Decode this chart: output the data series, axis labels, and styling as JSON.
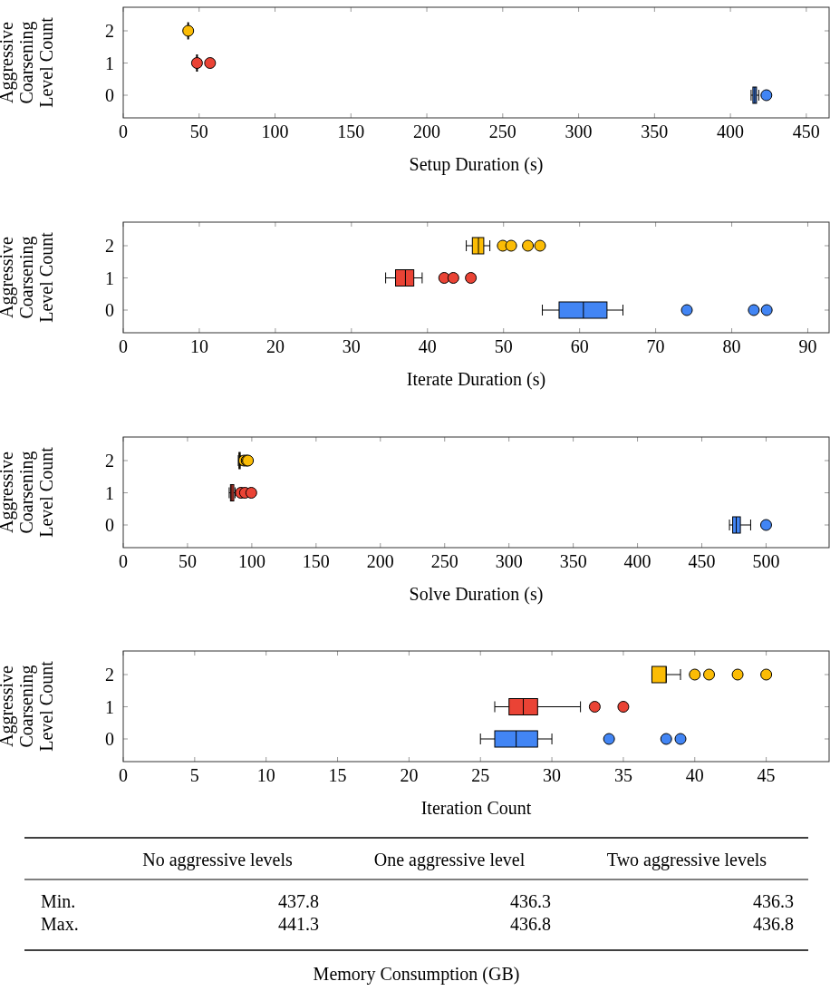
{
  "chart_data": [
    {
      "type": "box",
      "orientation": "horizontal",
      "xlabel": "Setup Duration (s)",
      "ylabel": "Aggressive Coarsening Level Count",
      "categories": [
        "2",
        "1",
        "0"
      ],
      "colors": [
        "#fbbc05",
        "#ea4335",
        "#4285f4"
      ],
      "boxes": [
        {
          "low": 42,
          "q1": 42.5,
          "median": 42.8,
          "q3": 43,
          "high": 43.5,
          "outliers": [
            42.8
          ]
        },
        {
          "low": 48,
          "q1": 48.3,
          "median": 48.6,
          "q3": 48.9,
          "high": 49.2,
          "outliers": [
            48.6,
            57.2
          ]
        },
        {
          "low": 413.6,
          "q1": 414.8,
          "median": 416,
          "q3": 417.2,
          "high": 418.7,
          "outliers": [
            423.7
          ]
        }
      ],
      "xlim": [
        0,
        465
      ],
      "xticks": [
        0,
        50,
        100,
        150,
        200,
        250,
        300,
        350,
        400,
        450
      ],
      "grid": false
    },
    {
      "type": "box",
      "orientation": "horizontal",
      "xlabel": "Iterate Duration (s)",
      "ylabel": "Aggressive Coarsening Level Count",
      "categories": [
        "2",
        "1",
        "0"
      ],
      "colors": [
        "#fbbc05",
        "#ea4335",
        "#4285f4"
      ],
      "boxes": [
        {
          "low": 45.1,
          "q1": 45.9,
          "median": 46.7,
          "q3": 47.4,
          "high": 48.2,
          "outliers": [
            49.9,
            51.0,
            53.2,
            54.8
          ]
        },
        {
          "low": 34.5,
          "q1": 35.8,
          "median": 37.1,
          "q3": 38.2,
          "high": 39.3,
          "outliers": [
            42.2,
            43.4,
            45.7
          ]
        },
        {
          "low": 55.1,
          "q1": 57.3,
          "median": 60.5,
          "q3": 63.6,
          "high": 65.7,
          "outliers": [
            74.1,
            82.9,
            84.6
          ]
        }
      ],
      "xlim": [
        0,
        92.8
      ],
      "xticks": [
        0,
        10,
        20,
        30,
        40,
        50,
        60,
        70,
        80,
        90
      ],
      "grid": false
    },
    {
      "type": "box",
      "orientation": "horizontal",
      "xlabel": "Solve Duration (s)",
      "ylabel": "Aggressive Coarsening Level Count",
      "categories": [
        "2",
        "1",
        "0"
      ],
      "colors": [
        "#fbbc05",
        "#ea4335",
        "#4285f4"
      ],
      "boxes": [
        {
          "low": 89.5,
          "q1": 90,
          "median": 90.5,
          "q3": 91,
          "high": 91.5,
          "outliers": [
            94,
            96,
            97
          ]
        },
        {
          "low": 82.4,
          "q1": 83.4,
          "median": 84.5,
          "q3": 86,
          "high": 87,
          "outliers": [
            91.5,
            94.7,
            99.6
          ]
        },
        {
          "low": 471.5,
          "q1": 474,
          "median": 476.8,
          "q3": 480,
          "high": 488,
          "outliers": [
            500
          ]
        }
      ],
      "xlim": [
        0,
        549
      ],
      "xticks": [
        0,
        50,
        100,
        150,
        200,
        250,
        300,
        350,
        400,
        450,
        500
      ],
      "grid": false
    },
    {
      "type": "box",
      "orientation": "horizontal",
      "xlabel": "Iteration Count",
      "ylabel": "Aggressive Coarsening Level Count",
      "categories": [
        "2",
        "1",
        "0"
      ],
      "colors": [
        "#fbbc05",
        "#ea4335",
        "#4285f4"
      ],
      "boxes": [
        {
          "low": 37,
          "q1": 37,
          "median": 38,
          "q3": 38,
          "high": 39,
          "outliers": [
            40,
            41,
            43,
            45
          ]
        },
        {
          "low": 26,
          "q1": 27,
          "median": 28,
          "q3": 29,
          "high": 32,
          "outliers": [
            33,
            35
          ]
        },
        {
          "low": 25,
          "q1": 26,
          "median": 27.5,
          "q3": 29,
          "high": 30,
          "outliers": [
            34,
            38,
            39
          ]
        }
      ],
      "xlim": [
        0,
        49.4
      ],
      "xticks": [
        0,
        5,
        10,
        15,
        20,
        25,
        30,
        35,
        40,
        45
      ],
      "grid": false
    },
    {
      "type": "heatmap",
      "xlabel": "Memory Consumption (GB)",
      "categories": [
        "No aggressive levels",
        "One aggressive level",
        "Two aggressive levels"
      ],
      "y_categories": [
        "Min.",
        "Max."
      ],
      "cells": [
        [
          437.8,
          436.3,
          436.3
        ],
        [
          441.3,
          436.8,
          436.8
        ]
      ],
      "data_labels": true
    }
  ]
}
